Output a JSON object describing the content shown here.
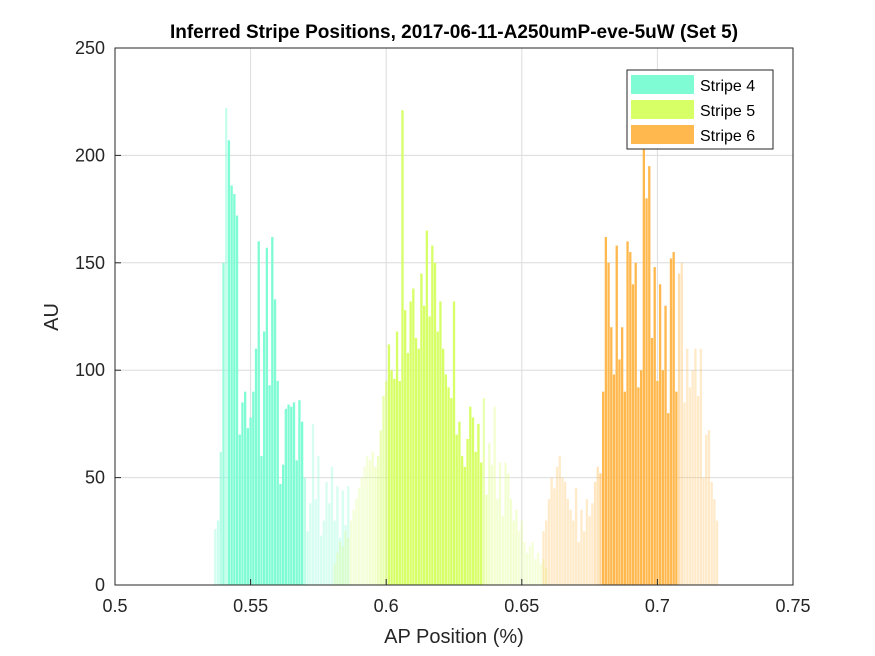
{
  "chart_data": {
    "type": "bar",
    "title": "Inferred Stripe Positions, 2017-06-11-A250umP-eve-5uW (Set 5)",
    "xlabel": "AP Position (%)",
    "ylabel": "AU",
    "xlim": [
      0.5,
      0.75
    ],
    "ylim": [
      0,
      250
    ],
    "xticks": [
      0.5,
      0.55,
      0.6,
      0.65,
      0.7,
      0.75
    ],
    "xtick_labels": [
      "0.5",
      "0.55",
      "0.6",
      "0.65",
      "0.7",
      "0.75"
    ],
    "yticks": [
      0,
      50,
      100,
      150,
      200,
      250
    ],
    "ytick_labels": [
      "0",
      "50",
      "100",
      "150",
      "200",
      "250"
    ],
    "grid": true,
    "legend_position": "top-right",
    "bin_width": 0.001,
    "series": [
      {
        "name": "Stripe 4",
        "color": "#7ffcd4",
        "x": [
          0.537,
          0.538,
          0.539,
          0.54,
          0.541,
          0.542,
          0.543,
          0.544,
          0.545,
          0.546,
          0.547,
          0.548,
          0.549,
          0.55,
          0.551,
          0.552,
          0.553,
          0.554,
          0.555,
          0.556,
          0.557,
          0.558,
          0.559,
          0.56,
          0.561,
          0.562,
          0.563,
          0.564,
          0.565,
          0.566,
          0.567,
          0.568,
          0.569,
          0.57,
          0.571,
          0.572,
          0.573,
          0.574,
          0.575,
          0.576,
          0.577,
          0.578,
          0.579,
          0.58,
          0.581,
          0.582,
          0.583,
          0.584,
          0.585,
          0.586
        ],
        "values": [
          26,
          30,
          62,
          150,
          222,
          207,
          186,
          182,
          172,
          70,
          85,
          90,
          73,
          78,
          90,
          110,
          160,
          60,
          118,
          157,
          93,
          162,
          133,
          95,
          47,
          56,
          82,
          84,
          83,
          85,
          58,
          86,
          76,
          50,
          25,
          38,
          75,
          40,
          60,
          23,
          30,
          48,
          38,
          55,
          30,
          46,
          22,
          44,
          28,
          46
        ],
        "opacity": [
          0.35,
          0.4,
          0.6,
          0.8,
          0.45,
          1,
          1,
          1,
          1,
          1,
          1,
          1,
          1,
          1,
          1,
          1,
          1,
          1,
          1,
          1,
          1,
          1,
          1,
          1,
          1,
          1,
          1,
          1,
          1,
          1,
          1,
          1,
          1,
          0.5,
          0.35,
          0.3,
          0.3,
          0.3,
          0.3,
          0.3,
          0.3,
          0.3,
          0.3,
          0.3,
          0.3,
          0.3,
          0.3,
          0.3,
          0.3,
          0.3
        ]
      },
      {
        "name": "Stripe 5",
        "color": "#d7ff66",
        "x": [
          0.581,
          0.582,
          0.583,
          0.584,
          0.585,
          0.586,
          0.587,
          0.588,
          0.589,
          0.59,
          0.591,
          0.592,
          0.593,
          0.594,
          0.595,
          0.596,
          0.597,
          0.598,
          0.599,
          0.6,
          0.601,
          0.602,
          0.603,
          0.604,
          0.605,
          0.606,
          0.607,
          0.608,
          0.609,
          0.61,
          0.611,
          0.612,
          0.613,
          0.614,
          0.615,
          0.616,
          0.617,
          0.618,
          0.619,
          0.62,
          0.621,
          0.622,
          0.623,
          0.624,
          0.625,
          0.626,
          0.627,
          0.628,
          0.629,
          0.63,
          0.631,
          0.632,
          0.633,
          0.634,
          0.635,
          0.636,
          0.637,
          0.638,
          0.639,
          0.64,
          0.641,
          0.642,
          0.643,
          0.644,
          0.645,
          0.646,
          0.647,
          0.648,
          0.649,
          0.65,
          0.651,
          0.652,
          0.653,
          0.654,
          0.655,
          0.656,
          0.657,
          0.658,
          0.659
        ],
        "values": [
          10,
          15,
          20,
          18,
          25,
          22,
          30,
          35,
          40,
          45,
          50,
          55,
          60,
          58,
          62,
          55,
          60,
          72,
          88,
          95,
          112,
          100,
          96,
          118,
          95,
          221,
          128,
          108,
          132,
          138,
          115,
          110,
          145,
          130,
          165,
          125,
          158,
          150,
          118,
          132,
          110,
          98,
          92,
          87,
          132,
          70,
          76,
          60,
          55,
          68,
          83,
          78,
          62,
          75,
          57,
          87,
          42,
          66,
          56,
          83,
          40,
          57,
          32,
          57,
          52,
          40,
          30,
          35,
          25,
          30,
          20,
          15,
          18,
          20,
          12,
          15,
          10,
          12,
          8
        ],
        "opacity": [
          0.25,
          0.25,
          0.25,
          0.25,
          0.25,
          0.25,
          0.25,
          0.25,
          0.25,
          0.25,
          0.25,
          0.25,
          0.25,
          0.3,
          0.3,
          0.35,
          0.4,
          0.5,
          0.55,
          0.6,
          1,
          1,
          1,
          1,
          1,
          1,
          1,
          1,
          1,
          1,
          1,
          1,
          1,
          1,
          1,
          1,
          1,
          1,
          1,
          1,
          1,
          1,
          1,
          1,
          1,
          1,
          1,
          1,
          1,
          1,
          1,
          1,
          1,
          1,
          1,
          0.5,
          0.45,
          0.35,
          0.3,
          0.3,
          0.3,
          0.3,
          0.3,
          0.3,
          0.3,
          0.3,
          0.3,
          0.3,
          0.25,
          0.25,
          0.25,
          0.25,
          0.25,
          0.25,
          0.25,
          0.25,
          0.25,
          0.25,
          0.25
        ]
      },
      {
        "name": "Stripe 6",
        "color": "#ffb84d",
        "x": [
          0.658,
          0.659,
          0.66,
          0.661,
          0.662,
          0.663,
          0.664,
          0.665,
          0.666,
          0.667,
          0.668,
          0.669,
          0.67,
          0.671,
          0.672,
          0.673,
          0.674,
          0.675,
          0.676,
          0.677,
          0.678,
          0.679,
          0.68,
          0.681,
          0.682,
          0.683,
          0.684,
          0.685,
          0.686,
          0.687,
          0.688,
          0.689,
          0.69,
          0.691,
          0.692,
          0.693,
          0.694,
          0.695,
          0.696,
          0.697,
          0.698,
          0.699,
          0.7,
          0.701,
          0.702,
          0.703,
          0.704,
          0.705,
          0.706,
          0.707,
          0.708,
          0.709,
          0.71,
          0.711,
          0.712,
          0.713,
          0.714,
          0.715,
          0.716,
          0.717,
          0.718,
          0.719,
          0.72,
          0.721,
          0.722
        ],
        "values": [
          25,
          30,
          40,
          50,
          45,
          55,
          60,
          50,
          48,
          40,
          35,
          30,
          45,
          20,
          35,
          25,
          40,
          32,
          38,
          48,
          55,
          52,
          90,
          162,
          150,
          120,
          98,
          158,
          105,
          120,
          90,
          160,
          155,
          140,
          150,
          92,
          100,
          205,
          180,
          195,
          115,
          148,
          95,
          140,
          100,
          130,
          80,
          152,
          155,
          90,
          145,
          150,
          85,
          110,
          92,
          100,
          110,
          88,
          110,
          50,
          70,
          72,
          48,
          40,
          30
        ],
        "opacity": [
          0.3,
          0.3,
          0.3,
          0.3,
          0.3,
          0.3,
          0.3,
          0.3,
          0.3,
          0.3,
          0.3,
          0.3,
          0.3,
          0.3,
          0.3,
          0.3,
          0.3,
          0.3,
          0.3,
          0.35,
          0.4,
          0.6,
          1,
          1,
          1,
          1,
          1,
          1,
          1,
          1,
          1,
          1,
          1,
          1,
          1,
          1,
          1,
          1,
          1,
          1,
          1,
          1,
          1,
          1,
          1,
          1,
          1,
          1,
          1,
          1,
          0.45,
          0.35,
          0.3,
          0.3,
          0.3,
          0.3,
          0.3,
          0.3,
          0.3,
          0.3,
          0.3,
          0.3,
          0.3,
          0.3,
          0.3
        ]
      }
    ]
  }
}
